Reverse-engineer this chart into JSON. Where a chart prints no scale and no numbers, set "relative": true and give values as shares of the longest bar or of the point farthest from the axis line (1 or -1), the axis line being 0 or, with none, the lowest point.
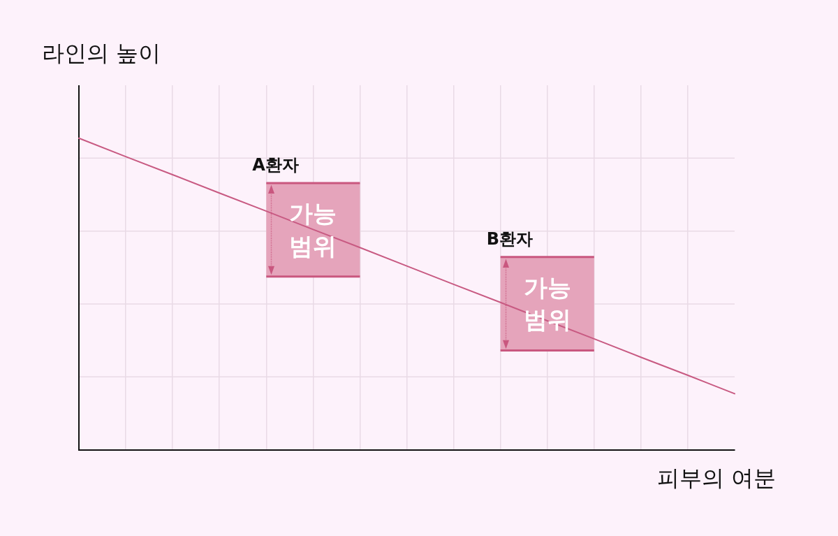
{
  "chart_data": {
    "type": "line",
    "xlabel": "피부의 여분",
    "ylabel": "라인의 높이",
    "relative": true,
    "grid": true,
    "legend": false,
    "marker": "none",
    "line_style": "solid",
    "categories": [
      null,
      null,
      null,
      null,
      null,
      null,
      null,
      null,
      null,
      null,
      null,
      null,
      null,
      null,
      null
    ],
    "series": [
      {
        "color": "#c85a82",
        "values": [
          1,
          0.941,
          0.883,
          0.824,
          0.766,
          0.707,
          0.649,
          0.59,
          0.531,
          0.473,
          0.414,
          0.356,
          0.297,
          0.239,
          0.18
        ]
      },
      {
        "name": "A환자",
        "color": "#c9577f",
        "values": [
          null,
          null,
          null,
          null,
          0.856,
          0.856,
          0.856,
          null,
          null,
          null,
          null,
          null,
          null,
          null,
          null
        ],
        "lower": [
          null,
          null,
          null,
          null,
          0.556,
          0.556,
          0.556,
          null,
          null,
          null,
          null,
          null,
          null,
          null,
          null
        ],
        "upper": [
          null,
          null,
          null,
          null,
          0.856,
          0.856,
          0.856,
          null,
          null,
          null,
          null,
          null,
          null,
          null,
          null
        ]
      },
      {
        "name": "B환자",
        "color": "#c9577f",
        "values": [
          null,
          null,
          null,
          null,
          null,
          null,
          null,
          null,
          null,
          0.619,
          0.619,
          0.619,
          null,
          null,
          null
        ],
        "lower": [
          null,
          null,
          null,
          null,
          null,
          null,
          null,
          null,
          null,
          0.319,
          0.319,
          0.319,
          null,
          null,
          null
        ],
        "upper": [
          null,
          null,
          null,
          null,
          null,
          null,
          null,
          null,
          null,
          0.619,
          0.619,
          0.619,
          null,
          null,
          null
        ]
      }
    ],
    "annotations": [
      "가능 범위",
      "가능 범위"
    ]
  }
}
